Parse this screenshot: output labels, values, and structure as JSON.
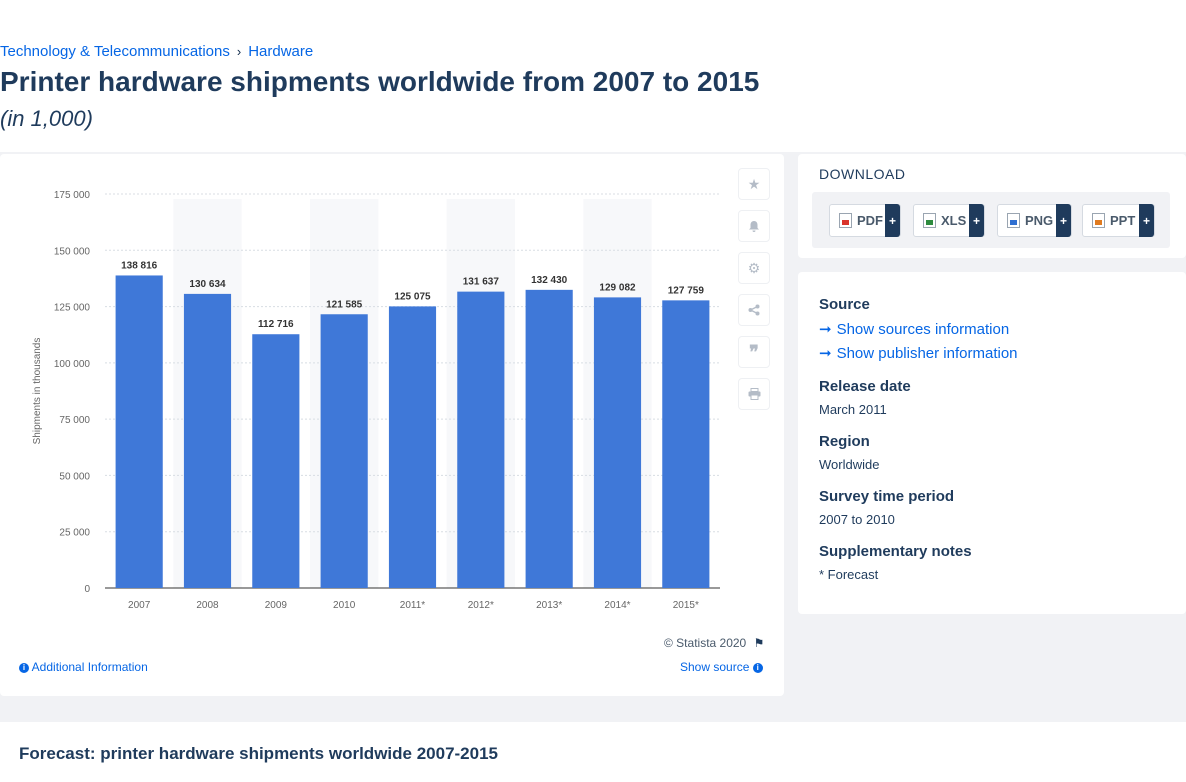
{
  "breadcrumb": [
    "Technology & Telecommunications",
    "Hardware"
  ],
  "page_title": "Printer hardware shipments worldwide from 2007 to 2015",
  "page_subtitle": "(in 1,000)",
  "chart_data": {
    "type": "bar",
    "categories": [
      "2007",
      "2008",
      "2009",
      "2010",
      "2011*",
      "2012*",
      "2013*",
      "2014*",
      "2015*"
    ],
    "values": [
      138816,
      130634,
      112716,
      121585,
      125075,
      131637,
      132430,
      129082,
      127759
    ],
    "value_labels": [
      "138 816",
      "130 634",
      "112 716",
      "121 585",
      "125 075",
      "131 637",
      "132 430",
      "129 082",
      "127 759"
    ],
    "ylabel": "Shipments in thousands",
    "ylim": [
      0,
      175000
    ],
    "yticks": [
      0,
      25000,
      50000,
      75000,
      100000,
      125000,
      150000,
      175000
    ],
    "ytick_labels": [
      "0",
      "25 000",
      "50 000",
      "75 000",
      "100 000",
      "125 000",
      "150 000",
      "175 000"
    ],
    "grid": true,
    "bar_color": "#3f78d8"
  },
  "chart_footer": {
    "copyright": "© Statista 2020",
    "additional_info": "Additional Information",
    "show_source": "Show source"
  },
  "tools": [
    "star-icon",
    "bell-icon",
    "gear-icon",
    "share-icon",
    "quote-icon",
    "print-icon"
  ],
  "download": {
    "title": "DOWNLOAD",
    "buttons": [
      {
        "label": "PDF",
        "color": "#d9342b"
      },
      {
        "label": "XLS",
        "color": "#2e8b3e"
      },
      {
        "label": "PNG",
        "color": "#2f6fd1"
      },
      {
        "label": "PPT",
        "color": "#e07b20"
      }
    ]
  },
  "meta": {
    "source_heading": "Source",
    "show_sources": "Show sources information",
    "show_publisher": "Show publisher information",
    "release_heading": "Release date",
    "release_value": "March 2011",
    "region_heading": "Region",
    "region_value": "Worldwide",
    "survey_heading": "Survey time period",
    "survey_value": "2007 to 2010",
    "notes_heading": "Supplementary notes",
    "notes_value": "* Forecast"
  },
  "bottom_title": "Forecast: printer hardware shipments worldwide 2007-2015"
}
